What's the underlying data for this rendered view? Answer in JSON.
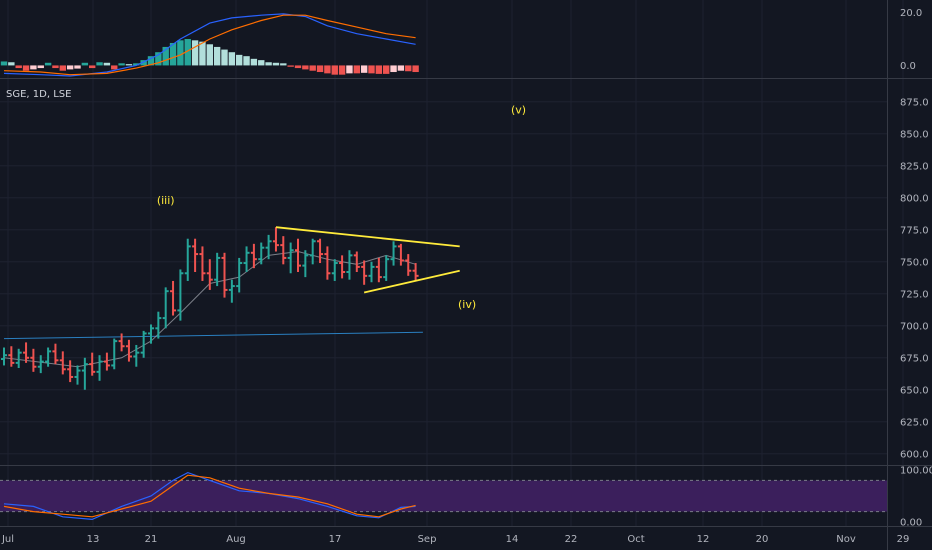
{
  "chart_data": {
    "type": "ohlc",
    "symbol_label": "SGE, 1D, LSE",
    "colors": {
      "up": "#26a69a",
      "down": "#ef5350",
      "background": "#131722",
      "grid": "#1e2230",
      "annotation": "#ffeb3b",
      "ma_long": "#2a7fc0",
      "ma_short": "#9598a1",
      "macd": "#2962ff",
      "signal": "#ff6d00",
      "rsi_band": "#3b1f5c"
    },
    "price_axis": {
      "ylim": [
        592,
        892
      ],
      "ticks": [
        "875.0",
        "850.0",
        "825.0",
        "800.0",
        "775.0",
        "750.0",
        "725.0",
        "700.0",
        "675.0",
        "650.0",
        "625.0",
        "600.0"
      ]
    },
    "time_axis": {
      "ticks": [
        "Jul",
        "13",
        "21",
        "Aug",
        "17",
        "Sep",
        "14",
        "22",
        "Oct",
        "12",
        "20",
        "Nov",
        "29"
      ]
    },
    "ohlc": [
      [
        674,
        683,
        669,
        677
      ],
      [
        677,
        684,
        668,
        671
      ],
      [
        671,
        682,
        667,
        679
      ],
      [
        679,
        687,
        671,
        675
      ],
      [
        675,
        682,
        664,
        668
      ],
      [
        668,
        677,
        663,
        672
      ],
      [
        672,
        683,
        668,
        680
      ],
      [
        680,
        686,
        670,
        673
      ],
      [
        673,
        680,
        662,
        666
      ],
      [
        666,
        673,
        656,
        660
      ],
      [
        660,
        669,
        654,
        665
      ],
      [
        665,
        675,
        650,
        670
      ],
      [
        670,
        679,
        661,
        664
      ],
      [
        664,
        677,
        657,
        672
      ],
      [
        672,
        679,
        665,
        669
      ],
      [
        669,
        690,
        666,
        688
      ],
      [
        688,
        694,
        680,
        684
      ],
      [
        684,
        689,
        672,
        676
      ],
      [
        676,
        685,
        668,
        679
      ],
      [
        679,
        696,
        675,
        694
      ],
      [
        694,
        701,
        686,
        698
      ],
      [
        698,
        711,
        690,
        706
      ],
      [
        706,
        730,
        698,
        727
      ],
      [
        727,
        735,
        708,
        712
      ],
      [
        712,
        744,
        704,
        741
      ],
      [
        741,
        768,
        735,
        762
      ],
      [
        762,
        768,
        742,
        756
      ],
      [
        756,
        762,
        735,
        741
      ],
      [
        741,
        752,
        728,
        736
      ],
      [
        736,
        757,
        731,
        753
      ],
      [
        753,
        757,
        722,
        728
      ],
      [
        728,
        736,
        718,
        731
      ],
      [
        731,
        753,
        726,
        749
      ],
      [
        749,
        762,
        742,
        757
      ],
      [
        757,
        764,
        745,
        752
      ],
      [
        752,
        765,
        748,
        761
      ],
      [
        761,
        771,
        752,
        766
      ],
      [
        766,
        777,
        758,
        763
      ],
      [
        763,
        770,
        748,
        753
      ],
      [
        753,
        765,
        741,
        759
      ],
      [
        759,
        768,
        742,
        747
      ],
      [
        747,
        759,
        738,
        755
      ],
      [
        755,
        768,
        748,
        766
      ],
      [
        766,
        768,
        749,
        756
      ],
      [
        756,
        762,
        736,
        741
      ],
      [
        741,
        752,
        735,
        749
      ],
      [
        749,
        755,
        737,
        742
      ],
      [
        742,
        759,
        736,
        755
      ],
      [
        755,
        758,
        742,
        746
      ],
      [
        746,
        751,
        732,
        739
      ],
      [
        739,
        750,
        734,
        746
      ],
      [
        746,
        753,
        734,
        738
      ],
      [
        738,
        755,
        735,
        752
      ],
      [
        752,
        766,
        747,
        762
      ],
      [
        762,
        764,
        747,
        751
      ],
      [
        751,
        756,
        739,
        743
      ],
      [
        743,
        749,
        735,
        739
      ]
    ],
    "ma_long": [
      [
        0,
        690
      ],
      [
        57,
        695
      ]
    ],
    "ma_short": [
      [
        0,
        675
      ],
      [
        10,
        668
      ],
      [
        16,
        675
      ],
      [
        20,
        688
      ],
      [
        24,
        710
      ],
      [
        28,
        733
      ],
      [
        32,
        738
      ],
      [
        36,
        755
      ],
      [
        40,
        758
      ],
      [
        44,
        752
      ],
      [
        48,
        748
      ],
      [
        52,
        755
      ],
      [
        56,
        748
      ]
    ],
    "trendlines": [
      {
        "from": [
          37,
          777
        ],
        "to": [
          62,
          762
        ]
      },
      {
        "from": [
          49,
          726
        ],
        "to": [
          62,
          743
        ]
      }
    ],
    "annotations": [
      {
        "label": "(iii)",
        "index": 22,
        "price": 795
      },
      {
        "label": "(v)",
        "index": 70,
        "price": 866
      },
      {
        "label": "(iv)",
        "index": 63,
        "price": 714
      }
    ],
    "macd": {
      "ticks": [
        "20.0",
        "0.0"
      ],
      "ylim": [
        -4,
        24
      ],
      "histogram": [
        1.5,
        1.2,
        -1.0,
        -2.0,
        -1.5,
        -1.0,
        1.0,
        -1.0,
        -2.0,
        -1.5,
        -1.2,
        1.0,
        -1.0,
        1.2,
        1.0,
        -1.5,
        0.8,
        0.5,
        0.8,
        2.0,
        3.5,
        5.0,
        7.0,
        8.5,
        9.5,
        10.0,
        9.5,
        9.0,
        8.0,
        7.0,
        6.0,
        5.0,
        4.0,
        3.5,
        2.5,
        2.0,
        1.2,
        1.0,
        0.8,
        -0.5,
        -1.0,
        -1.5,
        -2.0,
        -2.5,
        -3.0,
        -3.5,
        -3.5,
        -3.0,
        -3.0,
        -2.8,
        -3.0,
        -3.2,
        -3.2,
        -2.5,
        -2.0,
        -2.2,
        -2.5
      ],
      "macd_line": [
        [
          0,
          -3.0
        ],
        [
          5,
          -3.5
        ],
        [
          9,
          -4.0
        ],
        [
          14,
          -2.5
        ],
        [
          18,
          0.0
        ],
        [
          21,
          4.0
        ],
        [
          24,
          10.0
        ],
        [
          28,
          16.0
        ],
        [
          31,
          18.0
        ],
        [
          35,
          19.0
        ],
        [
          38,
          19.5
        ],
        [
          41,
          18.5
        ],
        [
          44,
          15.0
        ],
        [
          48,
          12.0
        ],
        [
          52,
          10.0
        ],
        [
          56,
          8.0
        ]
      ],
      "signal_line": [
        [
          0,
          -2.0
        ],
        [
          5,
          -2.5
        ],
        [
          9,
          -3.5
        ],
        [
          14,
          -3.0
        ],
        [
          18,
          -1.0
        ],
        [
          21,
          1.0
        ],
        [
          24,
          4.0
        ],
        [
          28,
          10.0
        ],
        [
          31,
          13.5
        ],
        [
          35,
          17.0
        ],
        [
          38,
          19.0
        ],
        [
          41,
          19.0
        ],
        [
          44,
          17.0
        ],
        [
          48,
          14.5
        ],
        [
          52,
          12.0
        ],
        [
          56,
          10.5
        ]
      ]
    },
    "rsi": {
      "ticks": [
        "100.00",
        "0.00"
      ],
      "ylim": [
        0,
        100
      ],
      "upper": 80,
      "lower": 20,
      "rsi_line": [
        [
          0,
          35
        ],
        [
          4,
          30
        ],
        [
          8,
          10
        ],
        [
          12,
          5
        ],
        [
          16,
          30
        ],
        [
          20,
          50
        ],
        [
          23,
          80
        ],
        [
          25,
          95
        ],
        [
          28,
          80
        ],
        [
          32,
          60
        ],
        [
          36,
          55
        ],
        [
          40,
          45
        ],
        [
          44,
          30
        ],
        [
          48,
          12
        ],
        [
          51,
          8
        ],
        [
          54,
          28
        ],
        [
          56,
          30
        ]
      ],
      "signal_line": [
        [
          0,
          30
        ],
        [
          4,
          20
        ],
        [
          8,
          15
        ],
        [
          12,
          10
        ],
        [
          16,
          25
        ],
        [
          20,
          40
        ],
        [
          23,
          70
        ],
        [
          25,
          90
        ],
        [
          28,
          85
        ],
        [
          32,
          65
        ],
        [
          36,
          55
        ],
        [
          40,
          48
        ],
        [
          44,
          35
        ],
        [
          48,
          15
        ],
        [
          51,
          10
        ],
        [
          54,
          25
        ],
        [
          56,
          32
        ]
      ]
    }
  }
}
